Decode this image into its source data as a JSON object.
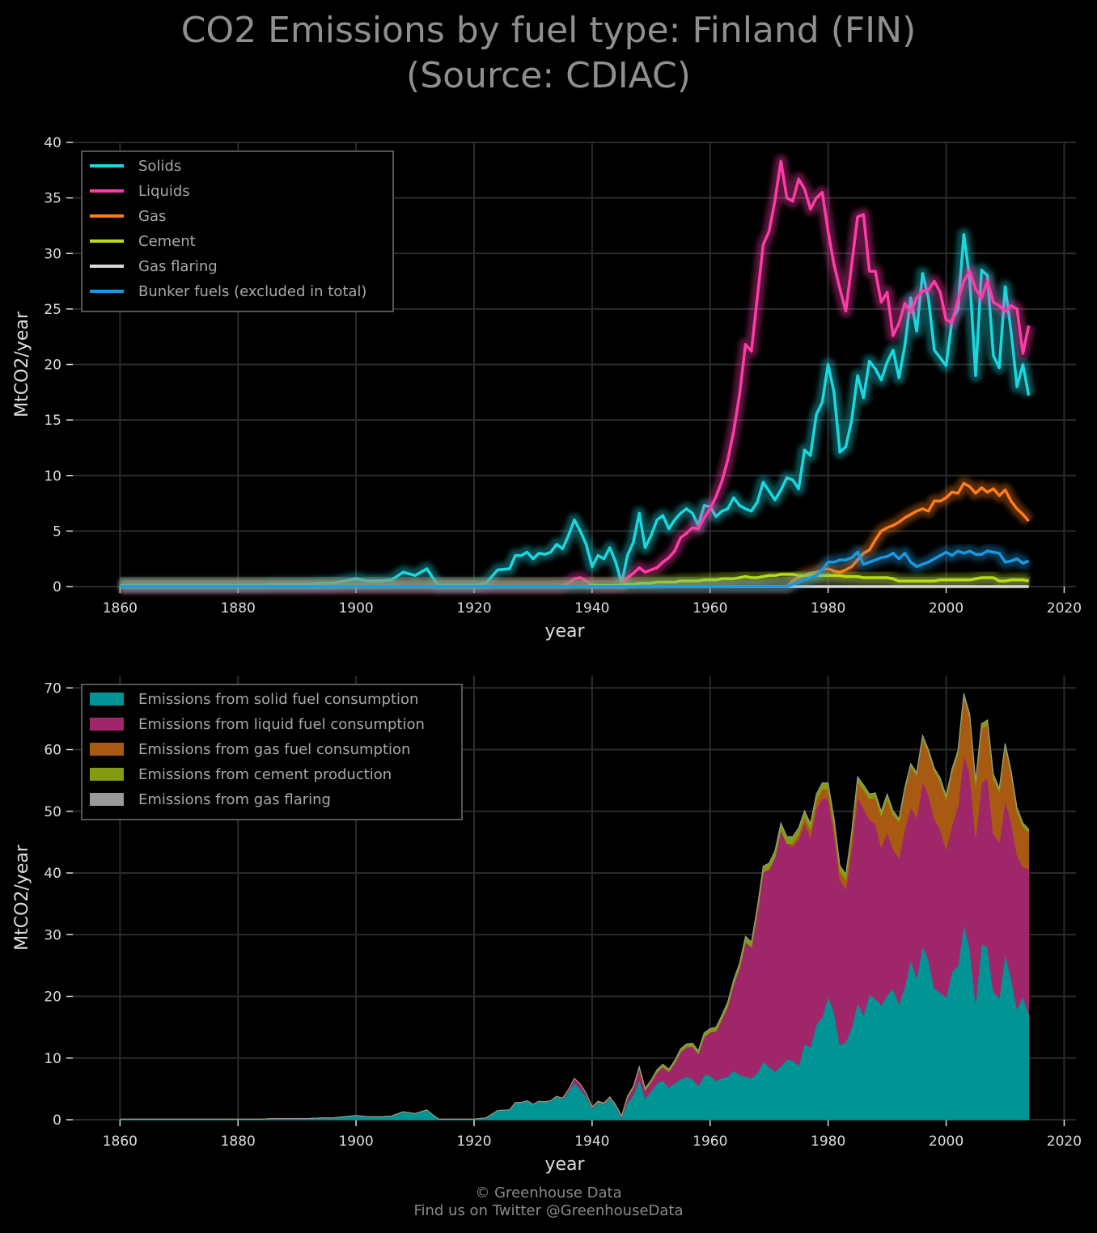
{
  "title": [
    "CO2 Emissions by fuel type: Finland (FIN)",
    "(Source: CDIAC)"
  ],
  "footer": [
    "© Greenhouse Data",
    "Find us on Twitter @GreenhouseData"
  ],
  "colors": {
    "background": "#000000",
    "grid": "#2b2b2b",
    "axis_text": "#dddddd",
    "legend_text": "#a8a8a8",
    "legend_border": "#555555"
  },
  "chart_data": [
    {
      "type": "line",
      "xlabel": "year",
      "ylabel": "MtCO2/year",
      "xlim": [
        1852,
        2022
      ],
      "ylim": [
        0,
        40
      ],
      "xticks": [
        1860,
        1880,
        1900,
        1920,
        1940,
        1960,
        1980,
        2000,
        2020
      ],
      "yticks": [
        0,
        5,
        10,
        15,
        20,
        25,
        30,
        35,
        40
      ],
      "grid": true,
      "legend_position": "top-left",
      "x": [
        1860,
        1862,
        1864,
        1866,
        1868,
        1870,
        1872,
        1874,
        1876,
        1878,
        1880,
        1882,
        1884,
        1886,
        1888,
        1890,
        1892,
        1894,
        1896,
        1898,
        1900,
        1902,
        1904,
        1906,
        1908,
        1910,
        1912,
        1913,
        1914,
        1916,
        1918,
        1920,
        1922,
        1924,
        1926,
        1927,
        1928,
        1929,
        1930,
        1931,
        1932,
        1933,
        1934,
        1935,
        1936,
        1937,
        1938,
        1939,
        1940,
        1941,
        1942,
        1943,
        1944,
        1945,
        1946,
        1947,
        1948,
        1949,
        1950,
        1951,
        1952,
        1953,
        1954,
        1955,
        1956,
        1957,
        1958,
        1959,
        1960,
        1961,
        1962,
        1963,
        1964,
        1965,
        1966,
        1967,
        1968,
        1969,
        1970,
        1971,
        1972,
        1973,
        1974,
        1975,
        1976,
        1977,
        1978,
        1979,
        1980,
        1981,
        1982,
        1983,
        1984,
        1985,
        1986,
        1987,
        1988,
        1989,
        1990,
        1991,
        1992,
        1993,
        1994,
        1995,
        1996,
        1997,
        1998,
        1999,
        2000,
        2001,
        2002,
        2003,
        2004,
        2005,
        2006,
        2007,
        2008,
        2009,
        2010,
        2011,
        2012,
        2013,
        2014
      ],
      "series": [
        {
          "name": "Solids",
          "color": "#18d8e0",
          "values": [
            0.1,
            0.1,
            0.1,
            0.1,
            0.1,
            0.1,
            0.1,
            0.1,
            0.1,
            0.1,
            0.1,
            0.1,
            0.1,
            0.2,
            0.2,
            0.2,
            0.2,
            0.3,
            0.3,
            0.5,
            0.7,
            0.5,
            0.5,
            0.6,
            1.3,
            1.0,
            1.6,
            0.8,
            0.1,
            0.1,
            0.1,
            0.1,
            0.3,
            1.5,
            1.6,
            2.8,
            2.8,
            3.1,
            2.5,
            3.0,
            2.9,
            3.1,
            3.8,
            3.4,
            4.6,
            6.0,
            5.0,
            3.8,
            1.8,
            2.8,
            2.5,
            3.5,
            2.2,
            0.3,
            2.8,
            4.0,
            6.6,
            3.5,
            4.6,
            6.0,
            6.4,
            5.2,
            6.0,
            6.6,
            7.0,
            6.6,
            5.5,
            7.3,
            7.2,
            6.3,
            6.8,
            7.0,
            8.0,
            7.3,
            7.0,
            6.8,
            7.6,
            9.4,
            8.6,
            7.8,
            8.7,
            9.8,
            9.6,
            8.8,
            12.3,
            11.8,
            15.5,
            16.6,
            20.0,
            17.5,
            12.1,
            12.6,
            15.0,
            19.0,
            17.0,
            20.3,
            19.6,
            18.6,
            20.2,
            21.3,
            18.8,
            21.7,
            26.0,
            23.0,
            28.2,
            26.0,
            21.3,
            20.6,
            19.9,
            24.0,
            25.0,
            31.7,
            27.7,
            19.0,
            28.5,
            28.0,
            20.8,
            19.7,
            27.0,
            23.0,
            18.0,
            20.0,
            17.2
          ]
        },
        {
          "name": "Liquids",
          "color": "#ff3ba8",
          "values": [
            0,
            0,
            0,
            0,
            0,
            0,
            0,
            0,
            0,
            0,
            0,
            0,
            0,
            0,
            0,
            0,
            0,
            0,
            0,
            0,
            0,
            0,
            0,
            0,
            0,
            0,
            0,
            0,
            0,
            0,
            0,
            0,
            0,
            0,
            0,
            0,
            0,
            0,
            0,
            0,
            0,
            0,
            0,
            0.1,
            0.3,
            0.7,
            0.8,
            0.5,
            0.2,
            0.1,
            0.1,
            0.1,
            0.1,
            0.2,
            0.8,
            1.2,
            1.7,
            1.3,
            1.5,
            1.7,
            2.2,
            2.6,
            3.2,
            4.4,
            4.8,
            5.3,
            5.2,
            6.2,
            7.0,
            8.1,
            9.5,
            11.4,
            14.0,
            17.3,
            21.8,
            21.2,
            26.0,
            30.8,
            32.0,
            34.8,
            38.3,
            35.0,
            34.7,
            36.7,
            35.8,
            34.0,
            35.0,
            35.5,
            32.0,
            29.0,
            26.8,
            24.8,
            29.0,
            33.3,
            33.5,
            28.4,
            28.4,
            25.6,
            26.5,
            22.6,
            23.7,
            25.5,
            24.7,
            26.0,
            26.6,
            26.7,
            27.5,
            26.5,
            24.0,
            23.8,
            25.8,
            27.5,
            28.4,
            26.8,
            26.0,
            27.5,
            25.6,
            25.3,
            24.8,
            25.3,
            25.0,
            21.0,
            23.5
          ]
        },
        {
          "name": "Gas",
          "color": "#ff7c1a",
          "values": [
            0,
            0,
            0,
            0,
            0,
            0,
            0,
            0,
            0,
            0,
            0,
            0,
            0,
            0,
            0,
            0,
            0,
            0,
            0,
            0,
            0,
            0,
            0,
            0,
            0,
            0,
            0,
            0,
            0,
            0,
            0,
            0,
            0,
            0,
            0,
            0,
            0,
            0,
            0,
            0,
            0,
            0,
            0,
            0,
            0,
            0,
            0,
            0,
            0,
            0,
            0,
            0,
            0,
            0,
            0,
            0,
            0,
            0,
            0,
            0,
            0,
            0,
            0,
            0,
            0,
            0,
            0,
            0,
            0,
            0,
            0,
            0,
            0,
            0,
            0,
            0,
            0,
            0,
            0,
            0,
            0,
            0,
            0.5,
            0.8,
            1.0,
            1.2,
            1.3,
            1.5,
            1.6,
            1.4,
            1.3,
            1.5,
            1.8,
            2.4,
            3.0,
            3.3,
            4.2,
            5.0,
            5.3,
            5.5,
            5.8,
            6.2,
            6.5,
            6.8,
            7.0,
            6.8,
            7.7,
            7.7,
            8.0,
            8.5,
            8.4,
            9.3,
            9.0,
            8.4,
            8.9,
            8.5,
            8.8,
            8.2,
            8.7,
            7.7,
            7.0,
            6.5,
            5.9
          ]
        },
        {
          "name": "Cement",
          "color": "#b9dc16",
          "values": [
            0,
            0,
            0,
            0,
            0,
            0,
            0,
            0,
            0,
            0,
            0,
            0,
            0,
            0,
            0,
            0,
            0,
            0,
            0,
            0,
            0,
            0,
            0,
            0,
            0,
            0,
            0,
            0,
            0,
            0,
            0,
            0,
            0,
            0,
            0,
            0,
            0,
            0,
            0,
            0,
            0,
            0,
            0,
            0,
            0,
            0,
            0,
            0,
            0.1,
            0.1,
            0.1,
            0.1,
            0.1,
            0.1,
            0.2,
            0.2,
            0.3,
            0.3,
            0.3,
            0.4,
            0.4,
            0.4,
            0.4,
            0.5,
            0.5,
            0.5,
            0.5,
            0.6,
            0.6,
            0.6,
            0.7,
            0.7,
            0.7,
            0.8,
            0.9,
            0.8,
            0.8,
            0.9,
            1.0,
            1.0,
            1.1,
            1.1,
            1.1,
            1.0,
            1.0,
            1.0,
            1.0,
            1.0,
            1.0,
            1.0,
            1.0,
            0.9,
            0.9,
            0.9,
            0.8,
            0.8,
            0.8,
            0.8,
            0.8,
            0.7,
            0.5,
            0.5,
            0.5,
            0.5,
            0.5,
            0.5,
            0.5,
            0.6,
            0.6,
            0.6,
            0.6,
            0.6,
            0.6,
            0.7,
            0.8,
            0.8,
            0.8,
            0.5,
            0.5,
            0.6,
            0.6,
            0.6,
            0.5
          ]
        },
        {
          "name": "Gas flaring",
          "color": "#d9d9d9",
          "values": [
            0,
            0,
            0,
            0,
            0,
            0,
            0,
            0,
            0,
            0,
            0,
            0,
            0,
            0,
            0,
            0,
            0,
            0,
            0,
            0,
            0,
            0,
            0,
            0,
            0,
            0,
            0,
            0,
            0,
            0,
            0,
            0,
            0,
            0,
            0,
            0,
            0,
            0,
            0,
            0,
            0,
            0,
            0,
            0,
            0,
            0,
            0,
            0,
            0,
            0,
            0,
            0,
            0,
            0,
            0,
            0,
            0,
            0,
            0,
            0,
            0,
            0,
            0,
            0,
            0,
            0,
            0,
            0,
            0,
            0,
            0,
            0,
            0,
            0,
            0,
            0,
            0,
            0,
            0,
            0,
            0,
            0,
            0,
            0,
            0,
            0,
            0,
            0,
            0,
            0,
            0,
            0,
            0,
            0,
            0,
            0,
            0,
            0,
            0,
            0,
            0,
            0,
            0,
            0,
            0,
            0,
            0,
            0,
            0,
            0,
            0,
            0,
            0,
            0,
            0,
            0,
            0,
            0,
            0,
            0,
            0,
            0,
            0
          ]
        },
        {
          "name": "Bunker fuels (excluded in total)",
          "color": "#1a98e0",
          "values": [
            0,
            0,
            0,
            0,
            0,
            0,
            0,
            0,
            0,
            0,
            0,
            0,
            0,
            0,
            0,
            0,
            0,
            0,
            0,
            0,
            0,
            0,
            0,
            0,
            0,
            0,
            0,
            0,
            0,
            0,
            0,
            0,
            0,
            0,
            0,
            0,
            0,
            0,
            0,
            0,
            0,
            0,
            0,
            0,
            0,
            0,
            0,
            0,
            0,
            0,
            0,
            0,
            0,
            0,
            0,
            0,
            0,
            0,
            0,
            0,
            0,
            0,
            0,
            0,
            0,
            0,
            0,
            0,
            0,
            0,
            0,
            0,
            0,
            0,
            0,
            0,
            0,
            0,
            0,
            0,
            0,
            0,
            0.2,
            0.4,
            0.6,
            0.8,
            1.0,
            1.5,
            2.2,
            2.2,
            2.4,
            2.4,
            2.6,
            3.1,
            2.0,
            2.2,
            2.4,
            2.6,
            2.7,
            3.0,
            2.5,
            3.0,
            2.2,
            1.8,
            2.0,
            2.2,
            2.5,
            2.8,
            3.1,
            2.8,
            3.2,
            3.0,
            3.2,
            2.9,
            2.9,
            3.2,
            3.1,
            3.0,
            2.2,
            2.3,
            2.5,
            2.1,
            2.3
          ]
        }
      ]
    },
    {
      "type": "area",
      "stacked": true,
      "xlabel": "year",
      "ylabel": "MtCO2/year",
      "xlim": [
        1852,
        2022
      ],
      "ylim": [
        0,
        72
      ],
      "xticks": [
        1860,
        1880,
        1900,
        1920,
        1940,
        1960,
        1980,
        2000,
        2020
      ],
      "yticks": [
        0,
        10,
        20,
        30,
        40,
        50,
        60,
        70
      ],
      "grid": true,
      "legend_position": "top-left",
      "source_series": [
        "Solids",
        "Liquids",
        "Gas",
        "Cement",
        "Gas flaring"
      ],
      "series": [
        {
          "name": "Emissions from solid fuel consumption",
          "color": "#009494"
        },
        {
          "name": "Emissions from liquid fuel consumption",
          "color": "#a0266a"
        },
        {
          "name": "Emissions from gas fuel consumption",
          "color": "#a85a12"
        },
        {
          "name": "Emissions from cement production",
          "color": "#849a12"
        },
        {
          "name": "Emissions from gas flaring",
          "color": "#9a9a9a"
        }
      ]
    }
  ]
}
